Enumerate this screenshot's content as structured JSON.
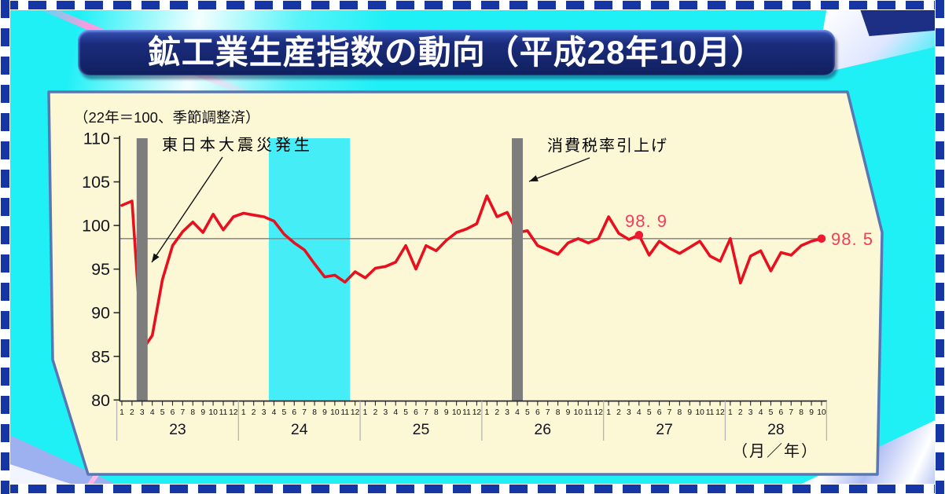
{
  "title": "鉱工業生産指数の動向（平成28年10月）",
  "chart_data": {
    "type": "line",
    "title": "鉱工業生産指数の動向（平成28年10月）",
    "note": "（22年＝100、季節調整済）",
    "xlabel": "（月／年）",
    "ylim": [
      80,
      110
    ],
    "ytick_step": 5,
    "ytick_values": [
      110,
      105,
      100,
      95,
      90,
      85,
      80
    ],
    "grid": "off",
    "years": [
      {
        "label": "23",
        "months": [
          1,
          2,
          3,
          4,
          5,
          6,
          7,
          8,
          9,
          10,
          11,
          12
        ]
      },
      {
        "label": "24",
        "months": [
          1,
          2,
          3,
          4,
          5,
          6,
          7,
          8,
          9,
          10,
          11,
          12
        ]
      },
      {
        "label": "25",
        "months": [
          1,
          2,
          3,
          4,
          5,
          6,
          7,
          8,
          9,
          10,
          11,
          12
        ]
      },
      {
        "label": "26",
        "months": [
          1,
          2,
          3,
          4,
          5,
          6,
          7,
          8,
          9,
          10,
          11,
          12
        ]
      },
      {
        "label": "27",
        "months": [
          1,
          2,
          3,
          4,
          5,
          6,
          7,
          8,
          9,
          10,
          11,
          12
        ]
      },
      {
        "label": "28",
        "months": [
          1,
          2,
          3,
          4,
          5,
          6,
          7,
          8,
          9,
          10
        ]
      }
    ],
    "series": [
      {
        "name": "鉱工業生産指数",
        "color": "#e8101e",
        "values": [
          102.3,
          102.8,
          85.7,
          87.4,
          93.8,
          97.7,
          99.3,
          100.4,
          99.2,
          101.3,
          99.5,
          101.0,
          101.4,
          101.2,
          101.0,
          100.5,
          99.0,
          98.0,
          97.2,
          95.6,
          94.1,
          94.3,
          93.5,
          94.7,
          94.0,
          95.1,
          95.3,
          95.8,
          97.7,
          95.0,
          97.7,
          97.1,
          98.3,
          99.2,
          99.6,
          100.2,
          103.4,
          101.0,
          101.5,
          99.2,
          99.4,
          97.7,
          97.2,
          96.7,
          98.0,
          98.5,
          98.0,
          98.5,
          101.0,
          99.1,
          98.4,
          98.9,
          96.6,
          98.2,
          97.4,
          96.8,
          97.5,
          98.2,
          96.5,
          95.9,
          98.5,
          93.4,
          96.5,
          97.1,
          94.8,
          96.9,
          96.6,
          97.7,
          98.2,
          98.5
        ]
      }
    ],
    "reference_line_value": 98.5,
    "recession_band": {
      "start_index": 14.5,
      "end_index": 22.5,
      "color": "#45edf6"
    },
    "event_bars": [
      {
        "label": "東日本大震災発生",
        "month_index": 2,
        "color": "#7d7d7d"
      },
      {
        "label": "消費税率引上げ",
        "month_index": 39,
        "color": "#7d7d7d"
      }
    ],
    "labeled_points": [
      {
        "month_index": 51,
        "value": 98.9,
        "label": "98. 9"
      },
      {
        "month_index": 69,
        "value": 98.5,
        "label": "98. 5"
      }
    ],
    "point_label_color": "#f23d5c"
  }
}
